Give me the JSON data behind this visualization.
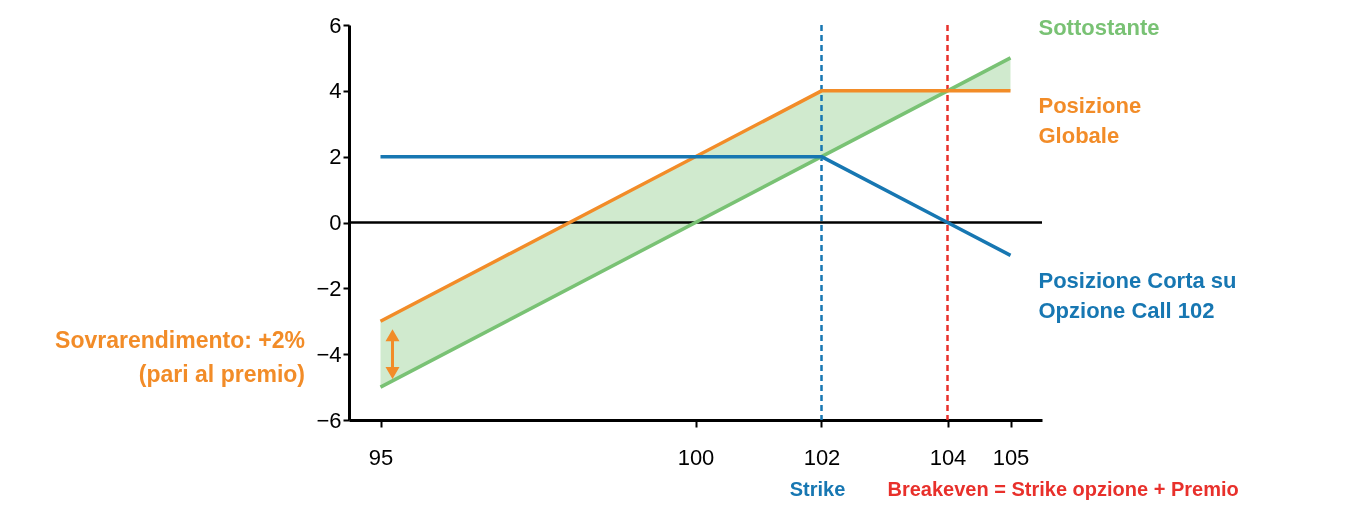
{
  "chart_data": {
    "type": "line",
    "x": [
      95,
      102,
      104,
      105
    ],
    "series": [
      {
        "name": "Sottostante",
        "color": "#79c274",
        "values": [
          -5,
          2,
          4,
          5
        ]
      },
      {
        "name": "Posizione Globale",
        "color": "#f28c28",
        "values": [
          -3,
          4,
          4,
          4
        ],
        "lower": [
          -5,
          2,
          4,
          4
        ],
        "upper": [
          -3,
          4,
          4,
          5
        ]
      },
      {
        "name": "Posizione Corta su Opzione Call 102",
        "color": "#1777b2",
        "values": [
          2,
          2,
          0,
          -1
        ]
      }
    ],
    "xlim": [
      94.5,
      105.5
    ],
    "xticks": [
      95,
      100,
      102,
      104,
      105
    ],
    "ylim": [
      -6,
      6
    ],
    "yticks": [
      -6,
      -4,
      -2,
      0,
      2,
      4,
      6
    ],
    "ref_lines": [
      {
        "axis": "y",
        "value": 0,
        "color": "#000000",
        "line_style": "solid"
      },
      {
        "axis": "x",
        "value": 102,
        "label": "Strike",
        "color": "#1777b2",
        "line_style": "dashed"
      },
      {
        "axis": "x",
        "value": 104,
        "label": "Breakeven = Strike opzione + Premio",
        "color": "#e8302b",
        "line_style": "dashed"
      }
    ],
    "annotations": [
      "Sovrarendimento: +2% (pari al premio)"
    ],
    "grid": false,
    "legend": false,
    "marker": "none",
    "line_style": "solid"
  }
}
